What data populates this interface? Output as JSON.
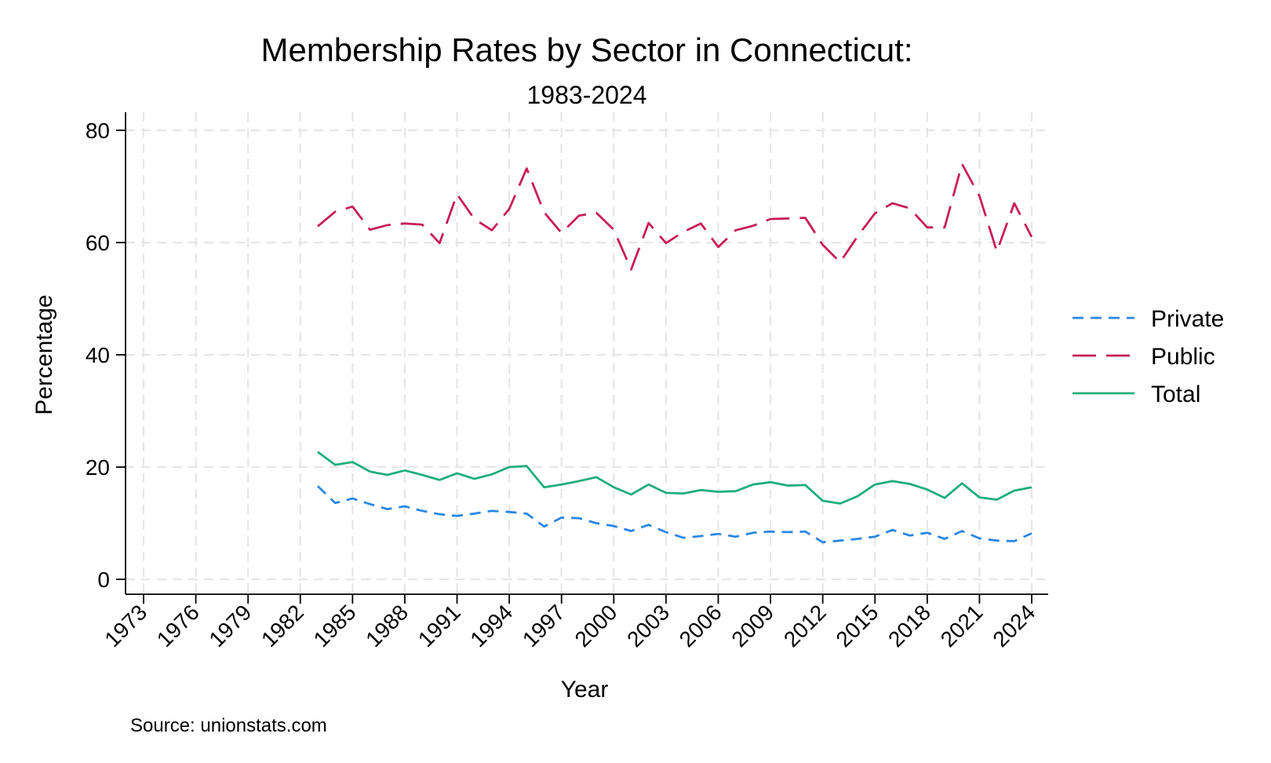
{
  "chart_data": {
    "type": "line",
    "title": "Membership Rates by Sector in Connecticut:",
    "subtitle": "1983-2024",
    "xlabel": "Year",
    "ylabel": "Percentage",
    "note": "Source: unionstats.com",
    "xlim": [
      1973,
      2024
    ],
    "ylim": [
      0,
      80
    ],
    "x_ticks": [
      1973,
      1976,
      1979,
      1982,
      1985,
      1988,
      1991,
      1994,
      1997,
      2000,
      2003,
      2006,
      2009,
      2012,
      2015,
      2018,
      2021,
      2024
    ],
    "y_ticks": [
      0,
      20,
      40,
      60,
      80
    ],
    "grid": true,
    "legend_position": "right",
    "x": [
      1983,
      1984,
      1985,
      1986,
      1987,
      1988,
      1989,
      1990,
      1991,
      1992,
      1993,
      1994,
      1995,
      1996,
      1997,
      1998,
      1999,
      2000,
      2001,
      2002,
      2003,
      2004,
      2005,
      2006,
      2007,
      2008,
      2009,
      2010,
      2011,
      2012,
      2013,
      2014,
      2015,
      2016,
      2017,
      2018,
      2019,
      2020,
      2021,
      2022,
      2023,
      2024
    ],
    "series": [
      {
        "name": "Private",
        "color": "#2b87e3",
        "dash": "short-dash",
        "values": [
          16.6,
          13.6,
          14.4,
          13.4,
          12.5,
          13.0,
          12.2,
          11.6,
          11.3,
          11.7,
          12.2,
          12.0,
          11.7,
          9.4,
          11.0,
          10.9,
          10.0,
          9.5,
          8.6,
          9.7,
          8.4,
          7.4,
          7.7,
          8.1,
          7.6,
          8.3,
          8.5,
          8.4,
          8.5,
          6.6,
          6.9,
          7.2,
          7.6,
          8.8,
          7.8,
          8.3,
          7.2,
          8.6,
          7.3,
          6.9,
          6.8,
          8.2
        ]
      },
      {
        "name": "Public",
        "color": "#c81e5a",
        "dash": "long-dash",
        "values": [
          62.9,
          65.5,
          66.4,
          62.3,
          63.1,
          63.4,
          63.2,
          59.9,
          68.6,
          64.2,
          62.2,
          66.0,
          73.2,
          65.4,
          61.7,
          64.8,
          65.3,
          62.3,
          55.2,
          63.5,
          59.9,
          61.9,
          63.4,
          59.2,
          62.2,
          63.0,
          64.2,
          64.3,
          64.4,
          59.6,
          56.5,
          61.1,
          65.2,
          67.0,
          66.1,
          62.7,
          62.7,
          74.0,
          68.3,
          58.4,
          67.0,
          61.0
        ]
      },
      {
        "name": "Total",
        "color": "#1fae7a",
        "dash": "solid",
        "values": [
          22.7,
          20.4,
          20.9,
          19.2,
          18.6,
          19.4,
          18.6,
          17.7,
          18.9,
          17.9,
          18.7,
          20.0,
          20.2,
          16.4,
          16.9,
          17.5,
          18.2,
          16.4,
          15.1,
          16.9,
          15.4,
          15.3,
          15.9,
          15.6,
          15.7,
          16.9,
          17.3,
          16.7,
          16.8,
          14.0,
          13.5,
          14.8,
          16.9,
          17.5,
          17.0,
          16.0,
          14.5,
          17.1,
          14.6,
          14.2,
          15.8,
          16.4
        ]
      }
    ]
  }
}
